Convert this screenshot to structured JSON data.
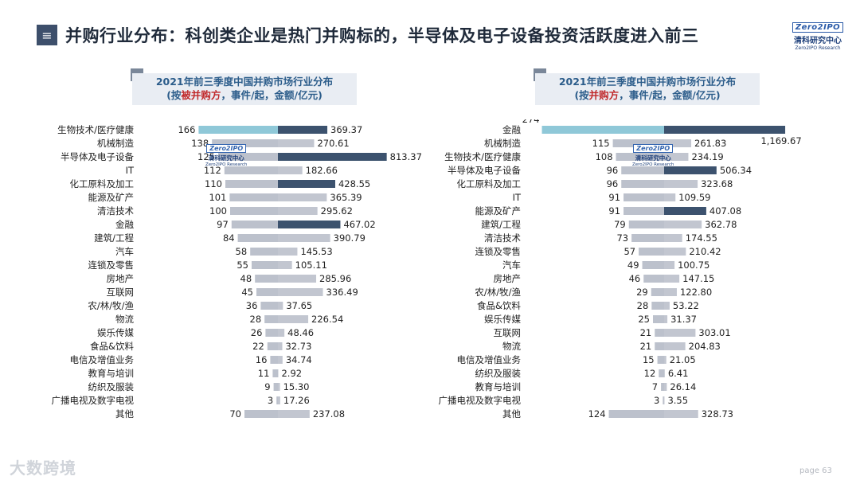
{
  "page": {
    "title_icon": "≡",
    "title": "并购行业分布：科创类企业是热门并购标的，半导体及电子设备投资活跃度进入前三",
    "logo": {
      "mark": "Zero2IPO",
      "cn": "清科研究中心",
      "en": "Zero2IPO Research"
    },
    "watermark": {
      "mark": "Zero2IPO",
      "cn": "清科研究中心",
      "en": "Zero2IPO Research"
    },
    "footer_brand": "大数跨境",
    "page_label": "page  63"
  },
  "colors": {
    "count_bar": "#bcc1cc",
    "count_bar_top": "#8fc8d8",
    "value_bar": "#c2c6d0",
    "value_highlight": "#3c526e"
  },
  "chart_data": [
    {
      "type": "bar",
      "title_line1": "2021年前三季度中国并购市场行业分布",
      "title_line2_pre": "(按",
      "title_line2_red": "被并购方",
      "title_line2_post": "，事件/起，金额/亿元)",
      "categories": [
        "生物技术/医疗健康",
        "机械制造",
        "半导体及电子设备",
        "IT",
        "化工原料及加工",
        "能源及矿产",
        "清洁技术",
        "金融",
        "建筑/工程",
        "汽车",
        "连锁及零售",
        "房地产",
        "互联网",
        "农/林/牧/渔",
        "物流",
        "娱乐传媒",
        "食品&饮料",
        "电信及增值业务",
        "教育与培训",
        "纺织及服装",
        "广播电视及数字电视",
        "其他"
      ],
      "count_labels": [
        "166",
        "138",
        "125",
        "112",
        "110",
        "101",
        "100",
        "97",
        "84",
        "58",
        "55",
        "48",
        "45",
        "36",
        "28",
        "26",
        "22",
        "16",
        "11",
        "9",
        "3",
        "70"
      ],
      "value_labels": [
        "369.37",
        "270.61",
        "813.37",
        "182.66",
        "428.55",
        "365.39",
        "295.62",
        "467.02",
        "390.79",
        "145.53",
        "105.11",
        "285.96",
        "336.49",
        "37.65",
        "226.54",
        "48.46",
        "32.73",
        "34.74",
        "2.92",
        "15.30",
        "17.26",
        "237.08"
      ],
      "series": [
        {
          "name": "事件/起",
          "values": [
            166,
            138,
            125,
            112,
            110,
            101,
            100,
            97,
            84,
            58,
            55,
            48,
            45,
            36,
            28,
            26,
            22,
            16,
            11,
            9,
            3,
            70
          ]
        },
        {
          "name": "金额/亿元",
          "values": [
            369.37,
            270.61,
            813.37,
            182.66,
            428.55,
            365.39,
            295.62,
            467.02,
            390.79,
            145.53,
            105.11,
            285.96,
            336.49,
            37.65,
            226.54,
            48.46,
            32.73,
            34.74,
            2.92,
            15.3,
            17.26,
            237.08
          ]
        }
      ],
      "highlight_values": [
        "半导体及电子设备",
        "化工原料及加工",
        "金融"
      ]
    },
    {
      "type": "bar",
      "title_line1": "2021年前三季度中国并购市场行业分布",
      "title_line2_pre": "(按",
      "title_line2_red": "并购方",
      "title_line2_post": "，事件/起，金额/亿元)",
      "categories": [
        "金融",
        "机械制造",
        "生物技术/医疗健康",
        "半导体及电子设备",
        "化工原料及加工",
        "IT",
        "能源及矿产",
        "建筑/工程",
        "清洁技术",
        "连锁及零售",
        "汽车",
        "房地产",
        "农/林/牧/渔",
        "食品&饮料",
        "娱乐传媒",
        "互联网",
        "物流",
        "电信及增值业务",
        "纺织及服装",
        "教育与培训",
        "广播电视及数字电视",
        "其他"
      ],
      "count_labels": [
        "274",
        "115",
        "108",
        "96",
        "96",
        "91",
        "91",
        "79",
        "73",
        "57",
        "49",
        "46",
        "29",
        "28",
        "25",
        "21",
        "21",
        "15",
        "12",
        "7",
        "3",
        "124"
      ],
      "value_labels": [
        "1,169.67",
        "261.83",
        "234.19",
        "506.34",
        "323.68",
        "109.59",
        "407.08",
        "362.78",
        "174.55",
        "210.42",
        "100.75",
        "147.15",
        "122.80",
        "53.22",
        "31.37",
        "303.01",
        "204.83",
        "21.05",
        "6.41",
        "26.14",
        "3.55",
        "328.73"
      ],
      "series": [
        {
          "name": "事件/起",
          "values": [
            274,
            115,
            108,
            96,
            96,
            91,
            91,
            79,
            73,
            57,
            49,
            46,
            29,
            28,
            25,
            21,
            21,
            15,
            12,
            7,
            3,
            124
          ]
        },
        {
          "name": "金额/亿元",
          "values": [
            1169.67,
            261.83,
            234.19,
            506.34,
            323.68,
            109.59,
            407.08,
            362.78,
            174.55,
            210.42,
            100.75,
            147.15,
            122.8,
            53.22,
            31.37,
            303.01,
            204.83,
            21.05,
            6.41,
            26.14,
            3.55,
            328.73
          ]
        }
      ],
      "highlight_values": [
        "金融",
        "半导体及电子设备",
        "能源及矿产"
      ]
    }
  ]
}
